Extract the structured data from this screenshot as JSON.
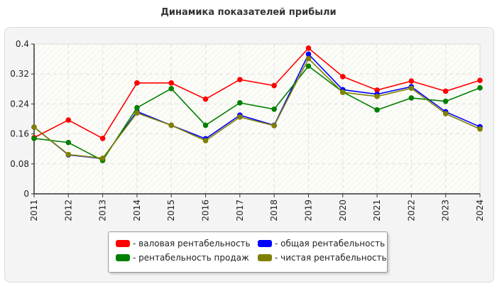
{
  "chart_data": {
    "type": "line",
    "title": "Динамика показателей прибыли",
    "x": [
      "2011",
      "2012",
      "2013",
      "2014",
      "2015",
      "2016",
      "2017",
      "2018",
      "2019",
      "2020",
      "2021",
      "2022",
      "2023",
      "2024"
    ],
    "ylim": [
      0,
      0.4
    ],
    "yticks": [
      "0",
      "0.08",
      "0.16",
      "0.24",
      "0.32",
      "0.4"
    ],
    "grid": true,
    "legend_position": "bottom",
    "series": [
      {
        "name": "- валовая рентабельность",
        "color": "#ff0000",
        "values": [
          0.15,
          0.197,
          0.148,
          0.296,
          0.296,
          0.253,
          0.305,
          0.289,
          0.389,
          0.313,
          0.277,
          0.301,
          0.274,
          0.303
        ]
      },
      {
        "name": "- общая рентабельность",
        "color": "#0000ff",
        "values": [
          0.178,
          0.104,
          0.094,
          0.22,
          0.183,
          0.147,
          0.21,
          0.183,
          0.373,
          0.278,
          0.266,
          0.286,
          0.219,
          0.179
        ]
      },
      {
        "name": "- рентабельность продаж",
        "color": "#008000",
        "values": [
          0.148,
          0.137,
          0.089,
          0.23,
          0.281,
          0.183,
          0.243,
          0.226,
          0.341,
          0.272,
          0.224,
          0.256,
          0.247,
          0.283
        ]
      },
      {
        "name": "- чистая рентабельность",
        "color": "#808000",
        "values": [
          0.178,
          0.105,
          0.095,
          0.216,
          0.183,
          0.142,
          0.205,
          0.182,
          0.361,
          0.271,
          0.26,
          0.282,
          0.214,
          0.173
        ]
      }
    ]
  }
}
